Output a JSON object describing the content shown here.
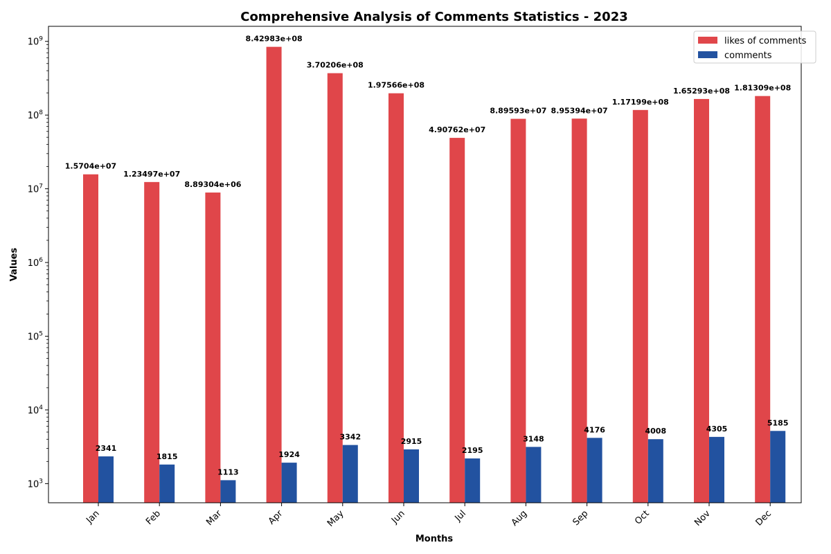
{
  "chart_data": {
    "type": "bar",
    "title": "Comprehensive Analysis of Comments Statistics - 2023",
    "xlabel": "Months",
    "ylabel": "Values",
    "yscale": "log",
    "ylim": [
      550,
      1600000000
    ],
    "yticks": [
      {
        "value": 1000,
        "base": "10",
        "exp": "3"
      },
      {
        "value": 10000,
        "base": "10",
        "exp": "4"
      },
      {
        "value": 100000,
        "base": "10",
        "exp": "5"
      },
      {
        "value": 1000000,
        "base": "10",
        "exp": "6"
      },
      {
        "value": 10000000,
        "base": "10",
        "exp": "7"
      },
      {
        "value": 100000000,
        "base": "10",
        "exp": "8"
      },
      {
        "value": 1000000000,
        "base": "10",
        "exp": "9"
      }
    ],
    "categories": [
      "Jan",
      "Feb",
      "Mar",
      "Apr",
      "May",
      "Jun",
      "Jul",
      "Aug",
      "Sep",
      "Oct",
      "Nov",
      "Dec"
    ],
    "series": [
      {
        "name": "likes of comments",
        "color": "#e0464a",
        "values": [
          15704000,
          12349700,
          8893040,
          842983000,
          370206000,
          197566000,
          49076200,
          88959300,
          89539400,
          117199000,
          165293000,
          181309000
        ],
        "labels": [
          "1.5704e+07",
          "1.23497e+07",
          "8.89304e+06",
          "8.42983e+08",
          "3.70206e+08",
          "1.97566e+08",
          "4.90762e+07",
          "8.89593e+07",
          "8.95394e+07",
          "1.17199e+08",
          "1.65293e+08",
          "1.81309e+08"
        ]
      },
      {
        "name": "comments",
        "color": "#2252a0",
        "values": [
          2341,
          1815,
          1113,
          1924,
          3342,
          2915,
          2195,
          3148,
          4176,
          4008,
          4305,
          5185
        ],
        "labels": [
          "2341",
          "1815",
          "1113",
          "1924",
          "3342",
          "2915",
          "2195",
          "3148",
          "4176",
          "4008",
          "4305",
          "5185"
        ]
      }
    ],
    "legend_position": "top-right",
    "grid": false
  }
}
